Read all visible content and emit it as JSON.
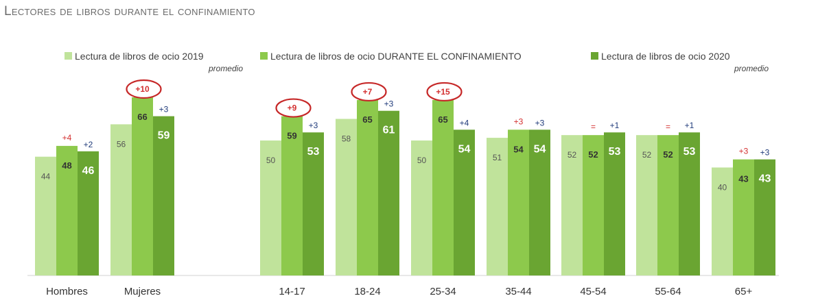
{
  "chart_data": {
    "type": "bar",
    "title": "Lectores de libros durante el confinamiento",
    "categories": [
      "Hombres",
      "Mujeres",
      "14-17",
      "18-24",
      "25-34",
      "35-44",
      "45-54",
      "55-64",
      "65+"
    ],
    "series": [
      {
        "name": "Lectura de libros de ocio 2019",
        "note": "promedio",
        "color": "#c0e39b",
        "values": [
          44,
          56,
          50,
          58,
          50,
          51,
          52,
          52,
          40
        ]
      },
      {
        "name": "Lectura de libros de ocio DURANTE EL CONFINAMIENTO",
        "note": "",
        "color": "#8dc94c",
        "values": [
          48,
          66,
          59,
          65,
          65,
          54,
          52,
          52,
          43
        ]
      },
      {
        "name": "Lectura de libros de ocio 2020",
        "note": "promedio",
        "color": "#6aa532",
        "values": [
          46,
          59,
          53,
          61,
          54,
          54,
          53,
          53,
          43
        ]
      }
    ],
    "diff_confinamiento": [
      "+4",
      "+10",
      "+9",
      "+7",
      "+15",
      "+3",
      "=",
      "=",
      "+3"
    ],
    "diff_2020": [
      "+2",
      "+3",
      "+3",
      "+3",
      "+4",
      "+3",
      "+1",
      "+1",
      "+3"
    ],
    "highlighted": [
      1,
      2,
      3,
      4
    ],
    "colors": {
      "diff_red": "#d32f2f",
      "diff_blue": "#1f3a7a",
      "circle": "#c62828"
    },
    "legend_position": "top",
    "grid": false,
    "ylim": [
      0,
      80
    ]
  }
}
